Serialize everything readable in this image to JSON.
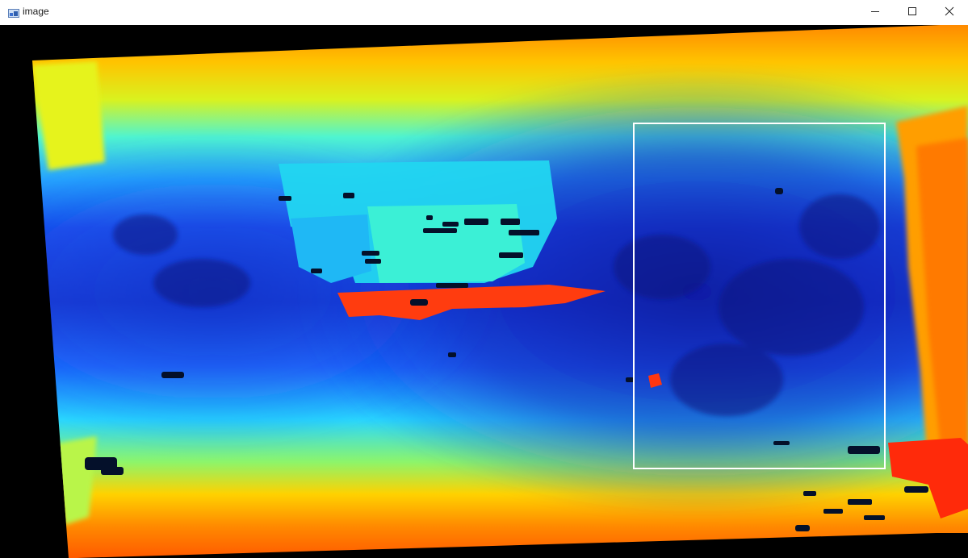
{
  "window": {
    "title": "image",
    "icons": {
      "app": "image-app-icon",
      "minimize": "minimize-icon",
      "maximize": "maximize-icon",
      "close": "close-icon"
    }
  },
  "image": {
    "description_kind": "depth-colormap",
    "colors": {
      "background": "#000000",
      "far": "#ff7a00",
      "mid_far": "#f5e61a",
      "mid": "#52ffb0",
      "near": "#1a5bff",
      "nearest": "#0d1fa8",
      "highlight": "#ff3b10",
      "roi_outline": "#ffffff"
    }
  }
}
